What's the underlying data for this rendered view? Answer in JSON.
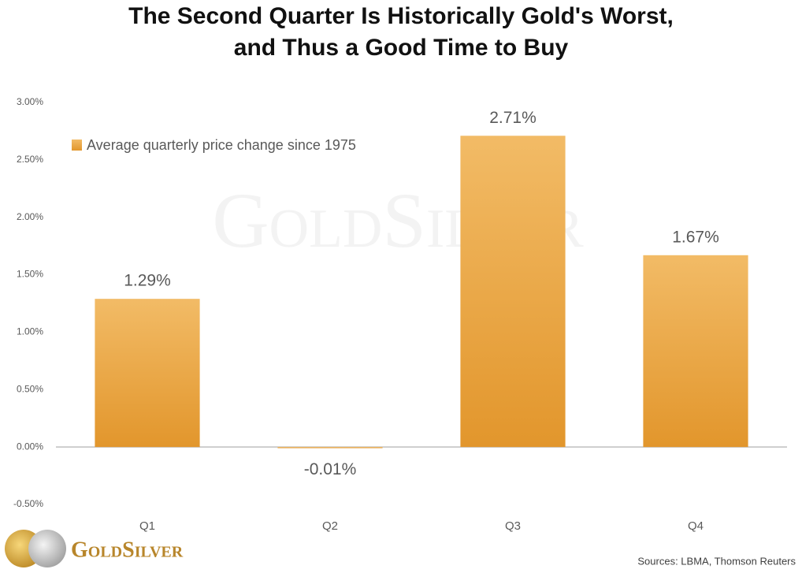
{
  "chart_data": {
    "type": "bar",
    "title": [
      "The Second Quarter Is Historically Gold's Worst,",
      "and Thus a Good Time to Buy"
    ],
    "categories": [
      "Q1",
      "Q2",
      "Q3",
      "Q4"
    ],
    "series": [
      {
        "name": "Average quarterly price change since 1975",
        "color": "#e9a444",
        "values": [
          1.29,
          -0.01,
          2.71,
          1.67
        ],
        "value_labels": [
          "1.29%",
          "-0.01%",
          "2.71%",
          "1.67%"
        ]
      }
    ],
    "ylim": [
      -0.5,
      3
    ],
    "yticks": [
      {
        "value": -0.5,
        "label": "-0.50%"
      },
      {
        "value": 0,
        "label": "0.00%"
      },
      {
        "value": 0.5,
        "label": "0.50%"
      },
      {
        "value": 1,
        "label": "1.00%"
      },
      {
        "value": 1.5,
        "label": "1.50%"
      },
      {
        "value": 2,
        "label": "2.00%"
      },
      {
        "value": 2.5,
        "label": "2.50%"
      },
      {
        "value": 3,
        "label": "3.00%"
      }
    ],
    "grid": false,
    "source": "Sources: LBMA, Thomson Reuters",
    "logo": "GoldSilver",
    "watermark": "GoldSilver"
  }
}
